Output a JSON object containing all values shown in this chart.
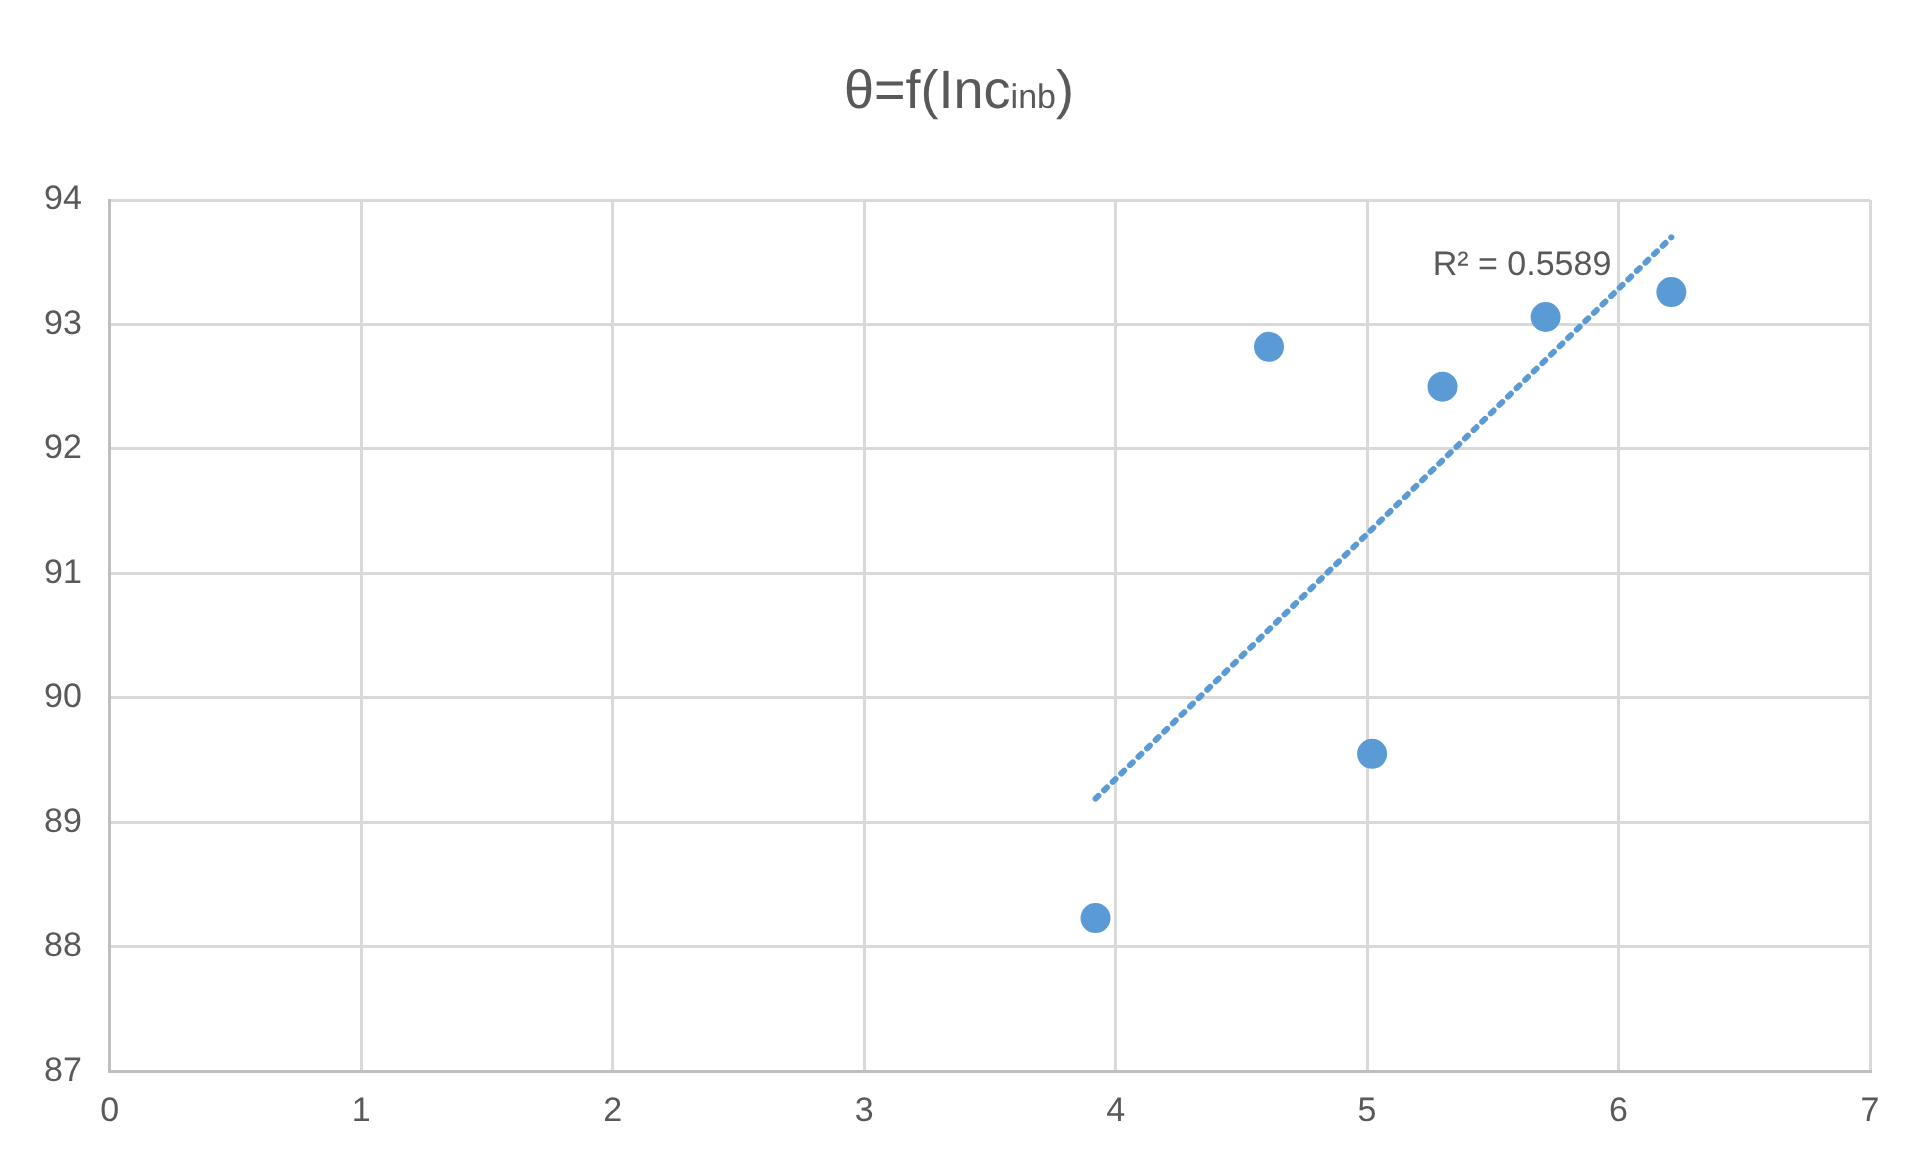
{
  "chart_data": {
    "type": "scatter",
    "title": "θ=f(Inc$_{inb}$)",
    "xlim": [
      0,
      7
    ],
    "xticks": [
      0,
      1,
      2,
      3,
      4,
      5,
      6,
      7
    ],
    "ylim": [
      87,
      94
    ],
    "yticks": [
      87,
      88,
      89,
      90,
      91,
      92,
      93,
      94
    ],
    "grid": true,
    "legend": false,
    "marker": "circle",
    "series": [
      {
        "color": "#5b9bd5",
        "x": [
          3.92,
          4.61,
          5.02,
          5.3,
          5.71,
          6.21
        ],
        "values": [
          88.23,
          92.82,
          89.55,
          92.5,
          93.06,
          93.26
        ]
      },
      {
        "type": "line",
        "line_style": "dotted",
        "marker": "none",
        "color": "#5b9bd5",
        "x": [
          3.92,
          6.21
        ],
        "values": [
          89.19,
          93.7
        ]
      }
    ],
    "annotations": [
      "R² = 0.5589"
    ]
  }
}
